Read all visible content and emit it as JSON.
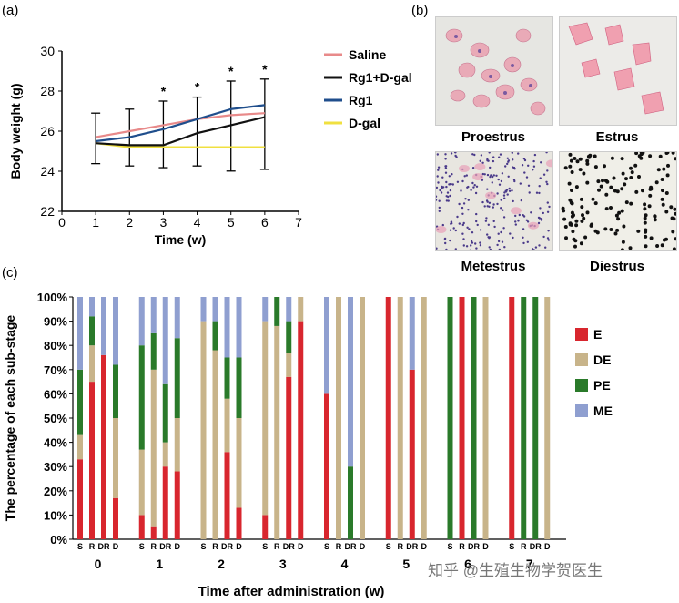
{
  "panel_labels": {
    "a": "(a)",
    "b": "(b)",
    "c": "(c)"
  },
  "micro_captions": [
    "Proestrus",
    "Estrus",
    "Metestrus",
    "Diestrus"
  ],
  "watermark": "知乎 @生殖生物学贺医生",
  "colors": {
    "saline": "#e88a8a",
    "rg1dgal": "#111111",
    "rg1": "#1f4e8c",
    "dgal": "#f0e040",
    "E": "#d8262e",
    "DE": "#c8b48a",
    "PE": "#2a7a2a",
    "ME": "#8f9fd0"
  },
  "chart_data": [
    {
      "type": "line",
      "xlabel": "Time (w)",
      "ylabel": "Body weight (g)",
      "xlim": [
        0,
        7
      ],
      "ylim": [
        22,
        30
      ],
      "xticks": [
        "0",
        "1",
        "2",
        "3",
        "4",
        "5",
        "6",
        "7"
      ],
      "yticks": [
        "22",
        "24",
        "26",
        "28",
        "30"
      ],
      "x": [
        1,
        2,
        3,
        4,
        5,
        6
      ],
      "series": [
        {
          "name": "Saline",
          "color": "saline",
          "values": [
            25.7,
            26.0,
            26.3,
            26.6,
            26.8,
            26.9
          ]
        },
        {
          "name": "Rg1+D-gal",
          "color": "rg1dgal",
          "values": [
            25.4,
            25.3,
            25.3,
            25.9,
            26.3,
            26.7
          ]
        },
        {
          "name": "Rg1",
          "color": "rg1",
          "values": [
            25.5,
            25.7,
            26.1,
            26.6,
            27.1,
            27.3
          ]
        },
        {
          "name": "D-gal",
          "color": "dgal",
          "values": [
            25.4,
            25.2,
            25.2,
            25.2,
            25.2,
            25.2
          ]
        }
      ],
      "error_bar": [
        1.2,
        1.1,
        1.2,
        1.1,
        1.4,
        1.3
      ],
      "significance": {
        "x": [
          3,
          4,
          5,
          6
        ],
        "label": "*"
      },
      "grid": false,
      "legend": "right"
    },
    {
      "type": "bar",
      "stacked": true,
      "xlabel": "Time after administration (w)",
      "ylabel": "The percentage of each sub-stage",
      "ylim": [
        0,
        100
      ],
      "yticks": [
        "0%",
        "10%",
        "20%",
        "30%",
        "40%",
        "50%",
        "60%",
        "70%",
        "80%",
        "90%",
        "100%"
      ],
      "group_labels": [
        "0",
        "1",
        "2",
        "3",
        "4",
        "5",
        "6",
        "7"
      ],
      "bar_labels": [
        "S",
        "R",
        "DR",
        "D"
      ],
      "stack_order": [
        "E",
        "DE",
        "PE",
        "ME"
      ],
      "legend": "right",
      "groups": [
        {
          "label": "0",
          "bars": [
            {
              "E": 33,
              "DE": 10,
              "PE": 27,
              "ME": 30
            },
            {
              "E": 65,
              "DE": 15,
              "PE": 12,
              "ME": 8
            },
            {
              "E": 76,
              "DE": 0,
              "PE": 0,
              "ME": 24
            },
            {
              "E": 17,
              "DE": 33,
              "PE": 22,
              "ME": 28
            }
          ]
        },
        {
          "label": "1",
          "bars": [
            {
              "E": 10,
              "DE": 27,
              "PE": 43,
              "ME": 20
            },
            {
              "E": 5,
              "DE": 65,
              "PE": 15,
              "ME": 15
            },
            {
              "E": 30,
              "DE": 10,
              "PE": 24,
              "ME": 36
            },
            {
              "E": 28,
              "DE": 22,
              "PE": 33,
              "ME": 17
            }
          ]
        },
        {
          "label": "2",
          "bars": [
            {
              "E": 0,
              "DE": 90,
              "PE": 0,
              "ME": 10
            },
            {
              "E": 0,
              "DE": 78,
              "PE": 12,
              "ME": 10
            },
            {
              "E": 36,
              "DE": 22,
              "PE": 17,
              "ME": 25
            },
            {
              "E": 13,
              "DE": 37,
              "PE": 25,
              "ME": 25
            }
          ]
        },
        {
          "label": "3",
          "bars": [
            {
              "E": 10,
              "DE": 80,
              "PE": 0,
              "ME": 10
            },
            {
              "E": 0,
              "DE": 88,
              "PE": 12,
              "ME": 0
            },
            {
              "E": 67,
              "DE": 10,
              "PE": 13,
              "ME": 10
            },
            {
              "E": 90,
              "DE": 10,
              "PE": 0,
              "ME": 0
            }
          ]
        },
        {
          "label": "4",
          "bars": [
            {
              "E": 60,
              "DE": 0,
              "PE": 0,
              "ME": 40
            },
            {
              "E": 0,
              "DE": 100,
              "PE": 0,
              "ME": 0
            },
            {
              "E": 0,
              "DE": 0,
              "PE": 30,
              "ME": 70
            },
            {
              "E": 0,
              "DE": 100,
              "PE": 0,
              "ME": 0
            }
          ]
        },
        {
          "label": "5",
          "bars": [
            {
              "E": 100,
              "DE": 0,
              "PE": 0,
              "ME": 0
            },
            {
              "E": 0,
              "DE": 100,
              "PE": 0,
              "ME": 0
            },
            {
              "E": 70,
              "DE": 0,
              "PE": 0,
              "ME": 30
            },
            {
              "E": 0,
              "DE": 100,
              "PE": 0,
              "ME": 0
            }
          ]
        },
        {
          "label": "6",
          "bars": [
            {
              "E": 0,
              "DE": 0,
              "PE": 100,
              "ME": 0
            },
            {
              "E": 100,
              "DE": 0,
              "PE": 0,
              "ME": 0
            },
            {
              "E": 0,
              "DE": 0,
              "PE": 100,
              "ME": 0
            },
            {
              "E": 0,
              "DE": 100,
              "PE": 0,
              "ME": 0
            }
          ]
        },
        {
          "label": "7",
          "bars": [
            {
              "E": 100,
              "DE": 0,
              "PE": 0,
              "ME": 0
            },
            {
              "E": 0,
              "DE": 0,
              "PE": 100,
              "ME": 0
            },
            {
              "E": 0,
              "DE": 0,
              "PE": 100,
              "ME": 0
            },
            {
              "E": 0,
              "DE": 100,
              "PE": 0,
              "ME": 0
            }
          ]
        }
      ]
    }
  ]
}
